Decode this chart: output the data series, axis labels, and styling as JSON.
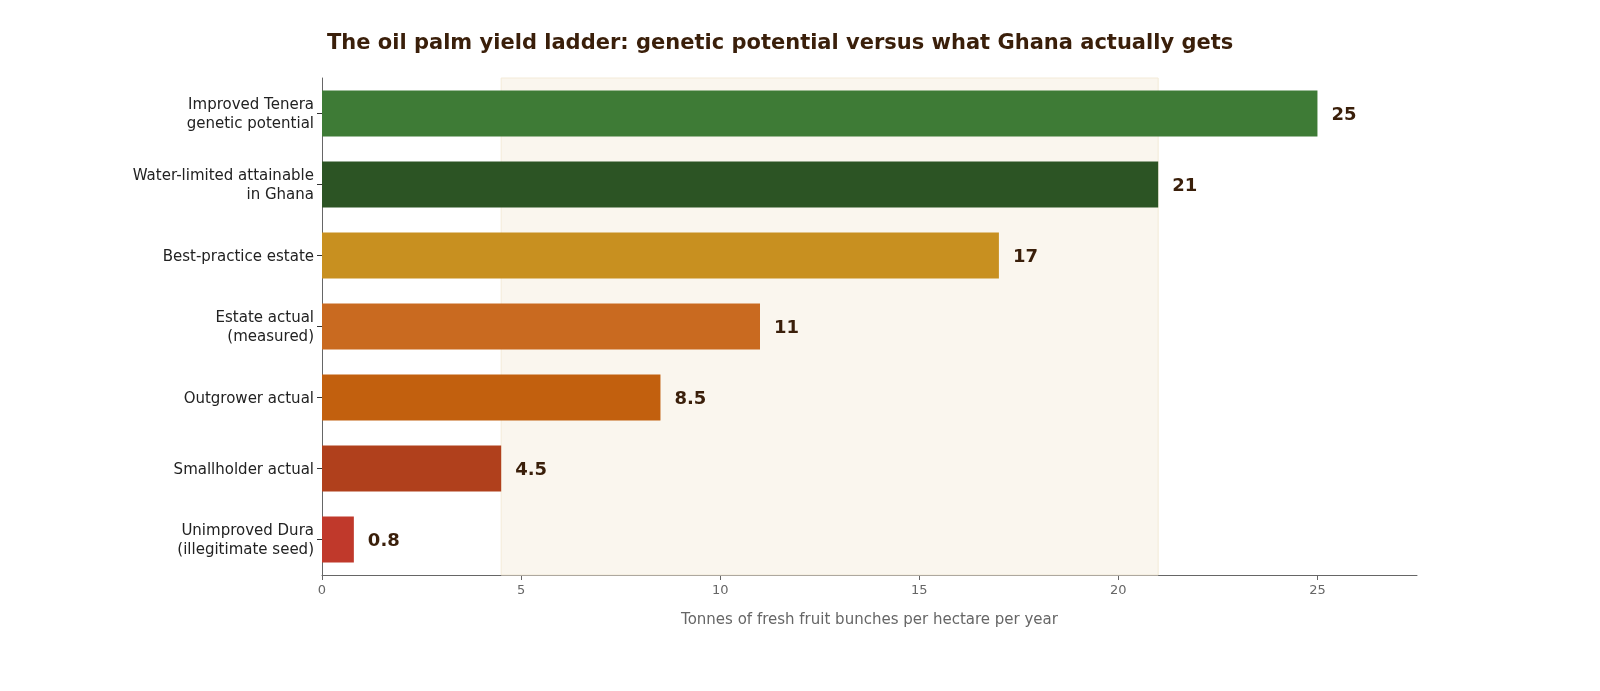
{
  "chart_data": {
    "type": "bar",
    "orientation": "horizontal",
    "title": "The oil palm yield ladder: genetic potential versus what Ghana actually gets",
    "xlabel": "Tonnes of fresh fruit bunches per hectare per year",
    "categories": [
      "Improved Tenera\ngenetic potential",
      "Water-limited attainable\nin Ghana",
      "Best-practice estate",
      "Estate actual\n(measured)",
      "Outgrower actual",
      "Smallholder actual",
      "Unimproved Dura\n(illegitimate seed)"
    ],
    "values": [
      25,
      21,
      17,
      11,
      8.5,
      4.5,
      0.8
    ],
    "colors": [
      "#3e7b36",
      "#2c5424",
      "#c89020",
      "#c96a20",
      "#c2600e",
      "#b0401c",
      "#c0392b"
    ],
    "xlim": [
      0,
      27.5
    ],
    "xticks": [
      0,
      5,
      10,
      15,
      20,
      25
    ],
    "bands": [
      {
        "axis": "x",
        "from": 4.5,
        "to": 21,
        "color": "#faf6ee"
      }
    ],
    "data_labels": true,
    "grid": false
  }
}
